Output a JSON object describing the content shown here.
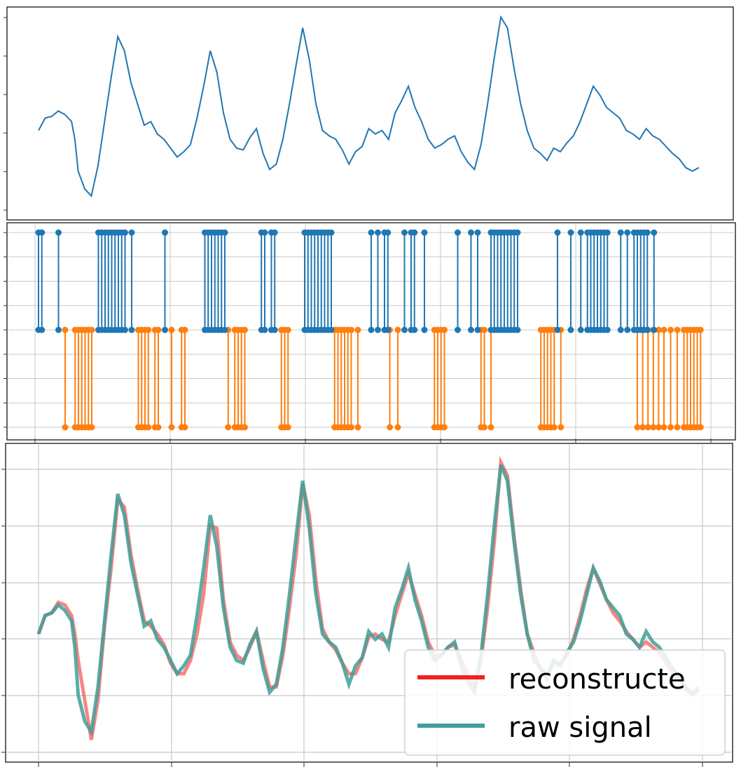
{
  "colors": {
    "signal": "#1f77b4",
    "spike_pos": "#1f77b4",
    "spike_neg": "#ff7f0e",
    "reconstructed": "#f22020",
    "raw": "#3f9f98",
    "grid": "#c8c8c8",
    "frame": "#333333"
  },
  "chart_data": [
    {
      "type": "line",
      "xlim": [
        0,
        100
      ],
      "ylim": [
        -0.1,
        1.0
      ],
      "grid": false,
      "series": [
        {
          "x": [
            0,
            1,
            2,
            3,
            4,
            5,
            5.5,
            6,
            7,
            8,
            9,
            10,
            11,
            12,
            13,
            14,
            15,
            16,
            17,
            18,
            19,
            20,
            21,
            22,
            23,
            24,
            25,
            26,
            27,
            28,
            29,
            30,
            31,
            32,
            33,
            34,
            35,
            36,
            37,
            38,
            39,
            40,
            41,
            42,
            43,
            44,
            45,
            46,
            47,
            48,
            49,
            50,
            51,
            52,
            53,
            54,
            55,
            56,
            57,
            58,
            59,
            60,
            61,
            62,
            63,
            64,
            65,
            66,
            67,
            68,
            69,
            70,
            71,
            72,
            73,
            74,
            75,
            76,
            77,
            78,
            79,
            80,
            81,
            82,
            83,
            84,
            85,
            86,
            87,
            88,
            89,
            90,
            91,
            92,
            93,
            94,
            95,
            96,
            97,
            98,
            99,
            100
          ],
          "y": [
            0.35,
            0.42,
            0.43,
            0.46,
            0.44,
            0.4,
            0.3,
            0.12,
            0.02,
            -0.02,
            0.15,
            0.4,
            0.65,
            0.88,
            0.8,
            0.62,
            0.5,
            0.38,
            0.4,
            0.33,
            0.3,
            0.25,
            0.2,
            0.23,
            0.27,
            0.42,
            0.6,
            0.8,
            0.68,
            0.45,
            0.3,
            0.25,
            0.24,
            0.31,
            0.36,
            0.22,
            0.13,
            0.16,
            0.3,
            0.5,
            0.72,
            0.93,
            0.75,
            0.5,
            0.35,
            0.32,
            0.3,
            0.24,
            0.16,
            0.23,
            0.26,
            0.36,
            0.33,
            0.35,
            0.3,
            0.45,
            0.52,
            0.6,
            0.48,
            0.4,
            0.3,
            0.25,
            0.27,
            0.3,
            0.32,
            0.23,
            0.17,
            0.13,
            0.27,
            0.5,
            0.76,
            0.99,
            0.93,
            0.7,
            0.5,
            0.35,
            0.25,
            0.22,
            0.18,
            0.25,
            0.23,
            0.28,
            0.32,
            0.4,
            0.5,
            0.6,
            0.55,
            0.48,
            0.45,
            0.42,
            0.35,
            0.33,
            0.3,
            0.36,
            0.32,
            0.3,
            0.26,
            0.22,
            0.19,
            0.14,
            0.12,
            0.14
          ]
        }
      ]
    },
    {
      "type": "scatter",
      "xlim": [
        0,
        100
      ],
      "ylim": [
        -1,
        1
      ],
      "grid": true,
      "series": [
        {
          "name": "",
          "level": 1,
          "x": [
            0,
            0.5,
            3,
            9,
            9.5,
            10,
            10.5,
            11,
            11.5,
            12,
            12.5,
            13,
            14,
            19,
            25,
            25.5,
            26,
            26.5,
            27,
            27.5,
            28,
            33.5,
            34,
            35,
            35.5,
            40,
            40.5,
            41,
            41.5,
            42,
            42.5,
            43,
            43.5,
            44,
            50,
            51,
            52,
            52.5,
            55,
            56,
            56.5,
            58,
            63,
            65,
            66,
            68,
            68.5,
            69,
            69.5,
            70,
            70.5,
            71,
            71.5,
            72,
            78,
            80,
            81.5,
            82.5,
            83,
            83.5,
            84,
            84.5,
            85,
            85.5,
            87.5,
            88.5,
            89.5,
            90,
            90.5,
            91,
            91.5,
            92.5
          ],
          "baseline": 0
        },
        {
          "name": "",
          "level": -1,
          "x": [
            4,
            5.5,
            6,
            6.5,
            7,
            7.5,
            8,
            15,
            15.5,
            16,
            16.5,
            17.5,
            18,
            20,
            21.5,
            22,
            28.5,
            29.5,
            30,
            30.5,
            31,
            36.5,
            37,
            37.5,
            44.5,
            45,
            45.5,
            46,
            46.5,
            47,
            48,
            52.8,
            54,
            59.5,
            60,
            60.5,
            61,
            66.5,
            67,
            68,
            75.5,
            76,
            76.5,
            77,
            77.5,
            78.5,
            90,
            90.8,
            91.6,
            92.4,
            93.2,
            94,
            95,
            96,
            97,
            97.5,
            98,
            98.5,
            99,
            99.5
          ],
          "baseline": 0
        }
      ]
    },
    {
      "type": "line",
      "xlim": [
        0,
        100
      ],
      "ylim": [
        -0.1,
        1.0
      ],
      "grid": true,
      "legend_position": "lower right",
      "series": [
        {
          "name": "reconstructe",
          "x": [
            0,
            1,
            2,
            3,
            4,
            5,
            5.5,
            6,
            7,
            8,
            9,
            10,
            11,
            12,
            13,
            14,
            15,
            16,
            17,
            18,
            19,
            20,
            21,
            22,
            23,
            24,
            25,
            26,
            27,
            28,
            29,
            30,
            31,
            32,
            33,
            34,
            35,
            36,
            37,
            38,
            39,
            40,
            41,
            42,
            43,
            44,
            45,
            46,
            47,
            48,
            49,
            50,
            51,
            52,
            53,
            54,
            55,
            56,
            57,
            58,
            59,
            60,
            61,
            62,
            63,
            64,
            65,
            66,
            67,
            68,
            69,
            70,
            71,
            72,
            73,
            74,
            75,
            76,
            77,
            78,
            79,
            80,
            81,
            82,
            83,
            84,
            85,
            86,
            87,
            88,
            89,
            90,
            91,
            92,
            93,
            94,
            95,
            96,
            97,
            98,
            99,
            100
          ],
          "y": [
            0.35,
            0.42,
            0.43,
            0.47,
            0.46,
            0.42,
            0.35,
            0.25,
            0.1,
            -0.05,
            0.1,
            0.38,
            0.6,
            0.86,
            0.83,
            0.65,
            0.52,
            0.4,
            0.38,
            0.35,
            0.31,
            0.24,
            0.2,
            0.2,
            0.25,
            0.35,
            0.5,
            0.76,
            0.75,
            0.48,
            0.32,
            0.27,
            0.25,
            0.3,
            0.36,
            0.25,
            0.15,
            0.15,
            0.27,
            0.45,
            0.65,
            0.92,
            0.8,
            0.55,
            0.37,
            0.32,
            0.29,
            0.24,
            0.2,
            0.2,
            0.26,
            0.34,
            0.35,
            0.33,
            0.32,
            0.42,
            0.5,
            0.58,
            0.5,
            0.42,
            0.32,
            0.27,
            0.27,
            0.3,
            0.31,
            0.25,
            0.2,
            0.15,
            0.25,
            0.45,
            0.7,
            1.0,
            0.95,
            0.72,
            0.52,
            0.35,
            0.28,
            0.22,
            0.2,
            0.24,
            0.24,
            0.27,
            0.33,
            0.42,
            0.52,
            0.6,
            0.54,
            0.48,
            0.43,
            0.4,
            0.36,
            0.33,
            0.3,
            0.32,
            0.3,
            0.28,
            0.24,
            0.2,
            0.18,
            0.15,
            0.13,
            0.15
          ]
        },
        {
          "name": "raw signal",
          "x": [
            0,
            1,
            2,
            3,
            4,
            5,
            5.5,
            6,
            7,
            8,
            9,
            10,
            11,
            12,
            13,
            14,
            15,
            16,
            17,
            18,
            19,
            20,
            21,
            22,
            23,
            24,
            25,
            26,
            27,
            28,
            29,
            30,
            31,
            32,
            33,
            34,
            35,
            36,
            37,
            38,
            39,
            40,
            41,
            42,
            43,
            44,
            45,
            46,
            47,
            48,
            49,
            50,
            51,
            52,
            53,
            54,
            55,
            56,
            57,
            58,
            59,
            60,
            61,
            62,
            63,
            64,
            65,
            66,
            67,
            68,
            69,
            70,
            71,
            72,
            73,
            74,
            75,
            76,
            77,
            78,
            79,
            80,
            81,
            82,
            83,
            84,
            85,
            86,
            87,
            88,
            89,
            90,
            91,
            92,
            93,
            94,
            95,
            96,
            97,
            98,
            99,
            100
          ],
          "y": [
            0.35,
            0.42,
            0.43,
            0.46,
            0.44,
            0.4,
            0.3,
            0.12,
            0.02,
            -0.02,
            0.15,
            0.4,
            0.65,
            0.88,
            0.8,
            0.62,
            0.5,
            0.38,
            0.4,
            0.33,
            0.3,
            0.25,
            0.2,
            0.23,
            0.27,
            0.42,
            0.6,
            0.8,
            0.68,
            0.45,
            0.3,
            0.25,
            0.24,
            0.31,
            0.36,
            0.22,
            0.13,
            0.16,
            0.3,
            0.5,
            0.72,
            0.93,
            0.75,
            0.5,
            0.35,
            0.32,
            0.3,
            0.24,
            0.16,
            0.23,
            0.26,
            0.36,
            0.33,
            0.35,
            0.3,
            0.45,
            0.52,
            0.6,
            0.48,
            0.4,
            0.3,
            0.25,
            0.27,
            0.3,
            0.32,
            0.23,
            0.17,
            0.13,
            0.27,
            0.5,
            0.76,
            0.99,
            0.93,
            0.7,
            0.5,
            0.35,
            0.25,
            0.22,
            0.18,
            0.25,
            0.23,
            0.28,
            0.32,
            0.4,
            0.5,
            0.6,
            0.55,
            0.48,
            0.45,
            0.42,
            0.35,
            0.33,
            0.3,
            0.36,
            0.32,
            0.3,
            0.26,
            0.22,
            0.19,
            0.14,
            0.12,
            0.14
          ]
        }
      ]
    }
  ],
  "legend": {
    "reconstructed_label": "reconstructe",
    "raw_label": "raw signal"
  }
}
